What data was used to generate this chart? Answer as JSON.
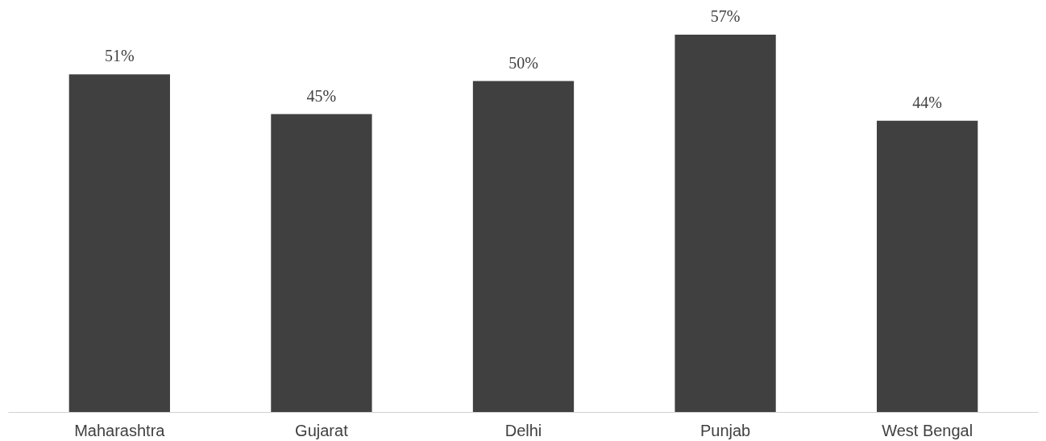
{
  "chart_data": {
    "type": "bar",
    "categories": [
      "Maharashtra",
      "Gujarat",
      "Delhi",
      "Punjab",
      "West Bengal"
    ],
    "values": [
      51,
      45,
      50,
      57,
      44
    ],
    "value_labels": [
      "51%",
      "45%",
      "50%",
      "57%",
      "44%"
    ],
    "color": "#404040",
    "grid": false
  }
}
